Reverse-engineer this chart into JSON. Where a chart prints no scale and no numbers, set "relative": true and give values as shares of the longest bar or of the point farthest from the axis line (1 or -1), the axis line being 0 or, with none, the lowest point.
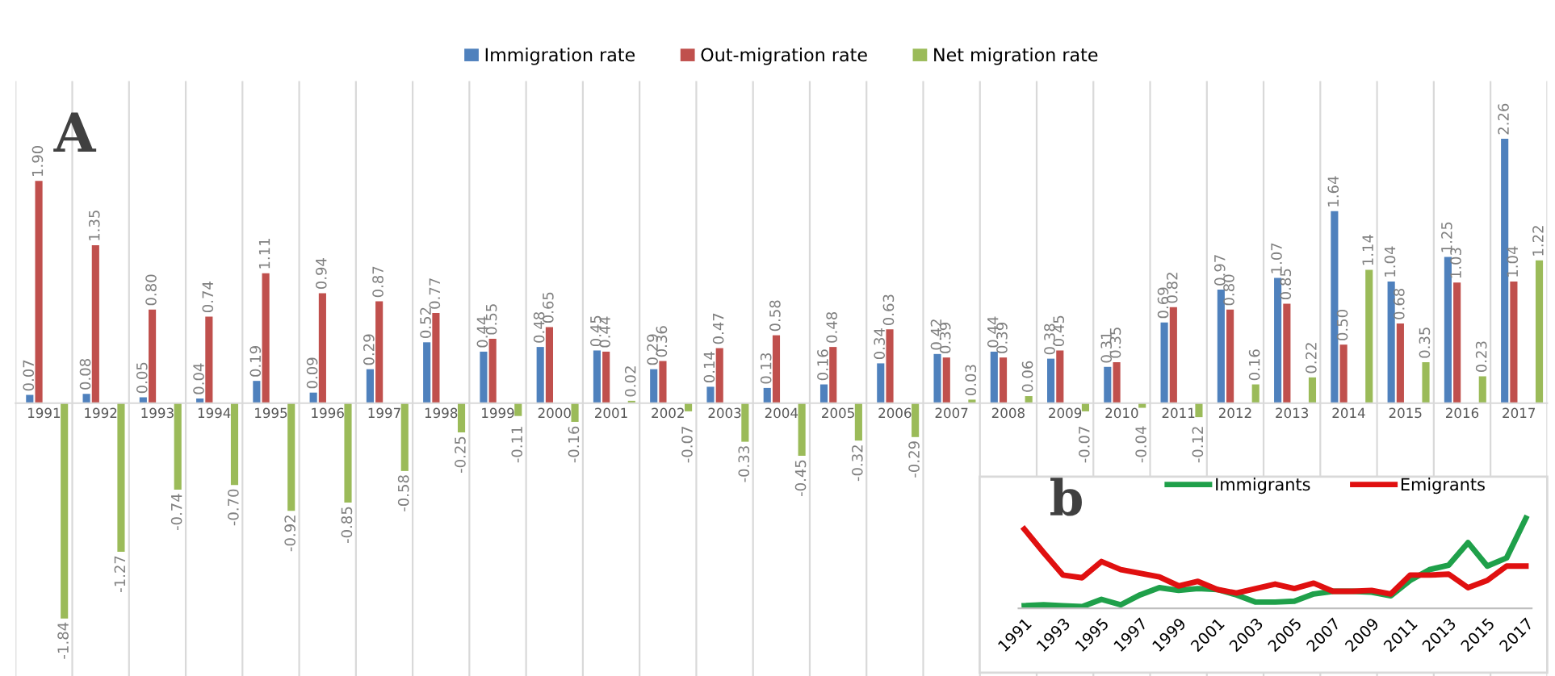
{
  "chart_data": [
    {
      "type": "bar",
      "categories": [
        "1991",
        "1992",
        "1993",
        "1994",
        "1995",
        "1996",
        "1997",
        "1998",
        "1999",
        "2000",
        "2001",
        "2002",
        "2003",
        "2004",
        "2005",
        "2006",
        "2007",
        "2008",
        "2009",
        "2010",
        "2011",
        "2012",
        "2013",
        "2014",
        "2015",
        "2016",
        "2017"
      ],
      "series": [
        {
          "name": "Immigration rate",
          "color": "#4f81bd",
          "values": [
            0.07,
            0.08,
            0.05,
            0.04,
            0.19,
            0.09,
            0.29,
            0.52,
            0.44,
            0.48,
            0.45,
            0.29,
            0.14,
            0.13,
            0.16,
            0.34,
            0.42,
            0.44,
            0.38,
            0.31,
            0.69,
            0.97,
            1.07,
            1.64,
            1.04,
            1.25,
            2.26
          ],
          "value_labels": [
            "0.07",
            "0.08",
            "0.05",
            "0.04",
            "0.19",
            "0.09",
            "0.29",
            "0.52",
            "0.44",
            "0.48",
            "0.45",
            "0.29",
            "0.14",
            "0.13",
            "0.16",
            "0.34",
            "0.42",
            "0.44",
            "0.38",
            "0.31",
            "0.69",
            "0.97",
            "1.07",
            "1.64",
            "1.04",
            "1.25",
            "2.26"
          ]
        },
        {
          "name": "Out-migration rate",
          "color": "#c0504d",
          "values": [
            1.9,
            1.35,
            0.8,
            0.74,
            1.11,
            0.94,
            0.87,
            0.77,
            0.55,
            0.65,
            0.44,
            0.36,
            0.47,
            0.58,
            0.48,
            0.63,
            0.39,
            0.39,
            0.45,
            0.35,
            0.82,
            0.8,
            0.85,
            0.5,
            0.68,
            1.03,
            1.04
          ],
          "value_labels": [
            "1.90",
            "1.35",
            "0.80",
            "0.74",
            "1.11",
            "0.94",
            "0.87",
            "0.77",
            "0.55",
            "0.65",
            "0.44",
            "0.36",
            "0.47",
            "0.58",
            "0.48",
            "0.63",
            "0.39",
            "0.39",
            "0.45",
            "0.35",
            "0.82",
            "0.80",
            "0.85",
            "0.50",
            "0.68",
            "1.03",
            "1.04"
          ]
        },
        {
          "name": "Net migration rate",
          "color": "#9bbb59",
          "values": [
            -1.84,
            -1.27,
            -0.74,
            -0.7,
            -0.92,
            -0.85,
            -0.58,
            -0.25,
            -0.11,
            -0.16,
            0.02,
            -0.07,
            -0.33,
            -0.45,
            -0.32,
            -0.29,
            0.03,
            0.06,
            -0.07,
            -0.04,
            -0.12,
            0.16,
            0.22,
            1.14,
            0.35,
            0.23,
            1.22
          ],
          "value_labels": [
            "-1.84",
            "-1.27",
            "-0.74",
            "-0.70",
            "-0.92",
            "-0.85",
            "-0.58",
            "-0.25",
            "-0.11",
            "-0.16",
            "0.02",
            "-0.07",
            "-0.33",
            "-0.45",
            "-0.32",
            "-0.29",
            "0.03",
            "0.06",
            "-0.07",
            "-0.04",
            "-0.12",
            "0.16",
            "0.22",
            "1.14",
            "0.35",
            "0.23",
            "1.22"
          ]
        }
      ],
      "legend": "top",
      "grid": "x",
      "tick_labels": "x",
      "annotations": [
        "A"
      ]
    },
    {
      "type": "line",
      "relative": true,
      "categories": [
        "1991",
        null,
        "1993",
        null,
        "1995",
        null,
        "1997",
        null,
        "1999",
        null,
        "2001",
        null,
        "2003",
        null,
        "2005",
        null,
        "2007",
        null,
        "2009",
        null,
        "2011",
        null,
        "2013",
        null,
        "2015",
        null,
        "2017"
      ],
      "series": [
        {
          "name": "Immigrants",
          "color": "#1fa04a",
          "values": [
            0.03,
            0.04,
            0.03,
            0.02,
            0.1,
            0.04,
            0.15,
            0.23,
            0.2,
            0.22,
            0.21,
            0.15,
            0.07,
            0.07,
            0.08,
            0.16,
            0.19,
            0.19,
            0.18,
            0.14,
            0.31,
            0.43,
            0.48,
            0.73,
            0.47,
            0.56,
            1.0
          ]
        },
        {
          "name": "Emigrants",
          "color": "#e01010",
          "values": [
            0.88,
            0.62,
            0.37,
            0.34,
            0.52,
            0.43,
            0.39,
            0.35,
            0.25,
            0.3,
            0.21,
            0.17,
            0.22,
            0.27,
            0.22,
            0.28,
            0.19,
            0.19,
            0.2,
            0.16,
            0.37,
            0.37,
            0.38,
            0.23,
            0.31,
            0.47,
            0.47
          ]
        }
      ],
      "legend": "top",
      "marker": "none",
      "line_style": "solid",
      "grid": false,
      "annotations": [
        "b"
      ]
    }
  ]
}
